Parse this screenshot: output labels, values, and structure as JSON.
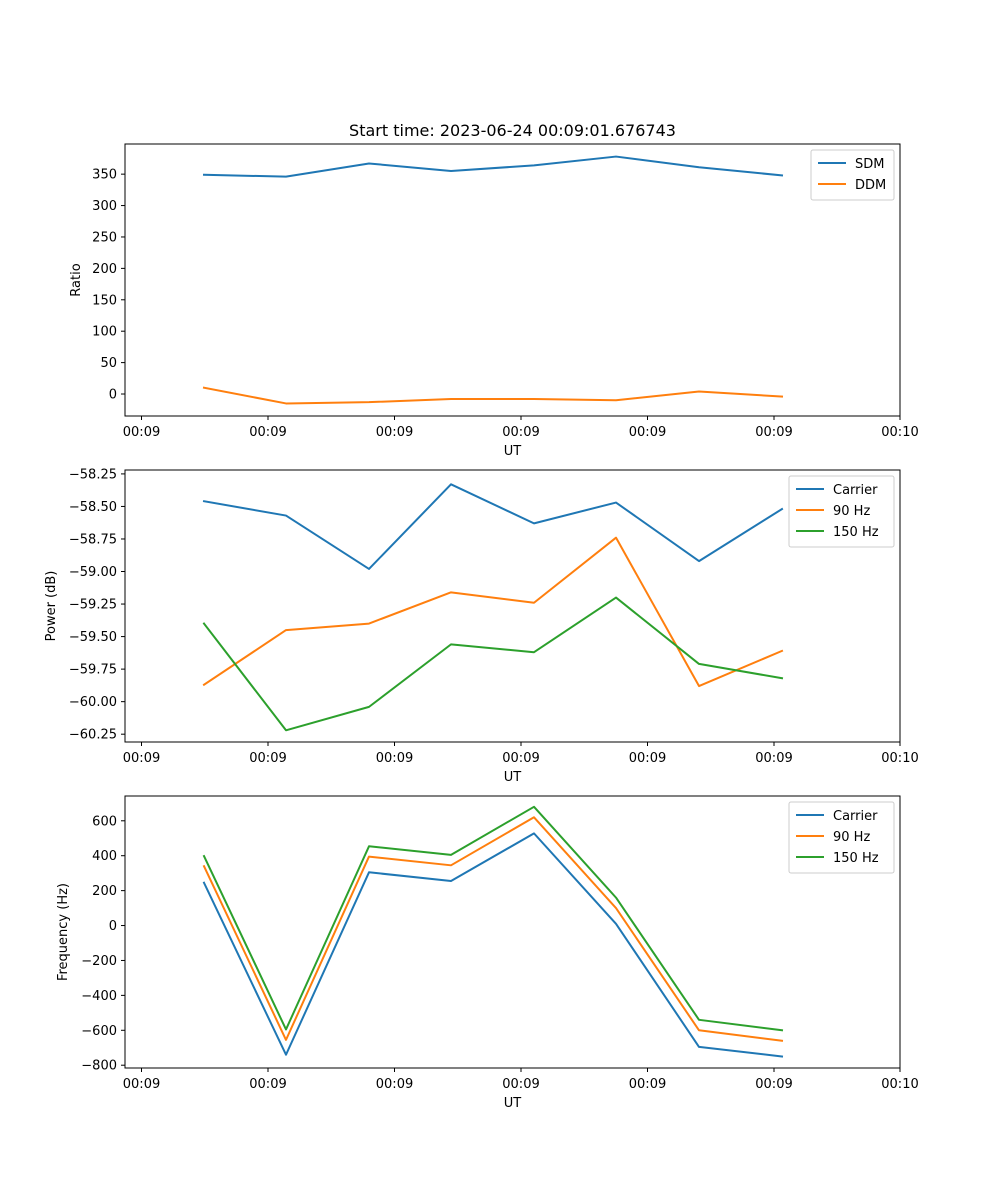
{
  "title": "Start time: 2023-06-24 00:09:01.676743",
  "colors": {
    "blue": "#1f77b4",
    "orange": "#ff7f0e",
    "green": "#2ca02c"
  },
  "chart_data": [
    {
      "type": "line",
      "xlabel": "UT",
      "ylabel": "Ratio",
      "x_tick_labels": [
        "00:09",
        "00:09",
        "00:09",
        "00:09",
        "00:09",
        "00:09",
        "00:09",
        "00:10"
      ],
      "y_ticks": [
        0,
        50,
        100,
        150,
        200,
        250,
        300,
        350
      ],
      "y_tick_labels": [
        "0",
        "50",
        "100",
        "150",
        "200",
        "250",
        "300",
        "350"
      ],
      "ylim": [
        -35,
        398
      ],
      "legend_position": "upper-right",
      "grid": false,
      "series": [
        {
          "name": "SDM",
          "color": "#1f77b4",
          "values": [
            349,
            346,
            367,
            355,
            364,
            378,
            361,
            348
          ]
        },
        {
          "name": "DDM",
          "color": "#ff7f0e",
          "values": [
            10,
            -15,
            -13,
            -8,
            -8,
            -10,
            4,
            -4
          ]
        }
      ]
    },
    {
      "type": "line",
      "xlabel": "UT",
      "ylabel": "Power (dB)",
      "x_tick_labels": [
        "00:09",
        "00:09",
        "00:09",
        "00:09",
        "00:09",
        "00:09",
        "00:09",
        "00:10"
      ],
      "y_ticks": [
        -60.25,
        -60.0,
        -59.75,
        -59.5,
        -59.25,
        -59.0,
        -58.75,
        -58.5,
        -58.25
      ],
      "y_tick_labels": [
        "−60.25",
        "−60.00",
        "−59.75",
        "−59.50",
        "−59.25",
        "−59.00",
        "−58.75",
        "−58.50",
        "−58.25"
      ],
      "ylim": [
        -60.31,
        -58.22
      ],
      "legend_position": "upper-right",
      "grid": false,
      "series": [
        {
          "name": "Carrier",
          "color": "#1f77b4",
          "values": [
            -58.46,
            -58.57,
            -58.98,
            -58.33,
            -58.63,
            -58.47,
            -58.92,
            -58.52
          ]
        },
        {
          "name": "90 Hz",
          "color": "#ff7f0e",
          "values": [
            -59.87,
            -59.45,
            -59.4,
            -59.16,
            -59.24,
            -58.74,
            -59.88,
            -59.61
          ]
        },
        {
          "name": "150 Hz",
          "color": "#2ca02c",
          "values": [
            -59.4,
            -60.22,
            -60.04,
            -59.56,
            -59.62,
            -59.2,
            -59.71,
            -59.82
          ]
        }
      ]
    },
    {
      "type": "line",
      "xlabel": "UT",
      "ylabel": "Frequency (Hz)",
      "x_tick_labels": [
        "00:09",
        "00:09",
        "00:09",
        "00:09",
        "00:09",
        "00:09",
        "00:09",
        "00:10"
      ],
      "y_ticks": [
        -800,
        -600,
        -400,
        -200,
        0,
        200,
        400,
        600
      ],
      "y_tick_labels": [
        "−800",
        "−600",
        "−400",
        "−200",
        "0",
        "200",
        "400",
        "600"
      ],
      "ylim": [
        -816,
        742
      ],
      "legend_position": "upper-right",
      "grid": false,
      "series": [
        {
          "name": "Carrier",
          "color": "#1f77b4",
          "values": [
            245,
            -740,
            305,
            255,
            528,
            10,
            -695,
            -750
          ]
        },
        {
          "name": "90 Hz",
          "color": "#ff7f0e",
          "values": [
            340,
            -655,
            395,
            345,
            620,
            100,
            -600,
            -660
          ]
        },
        {
          "name": "150 Hz",
          "color": "#2ca02c",
          "values": [
            398,
            -595,
            454,
            405,
            680,
            160,
            -540,
            -600
          ]
        }
      ]
    }
  ]
}
